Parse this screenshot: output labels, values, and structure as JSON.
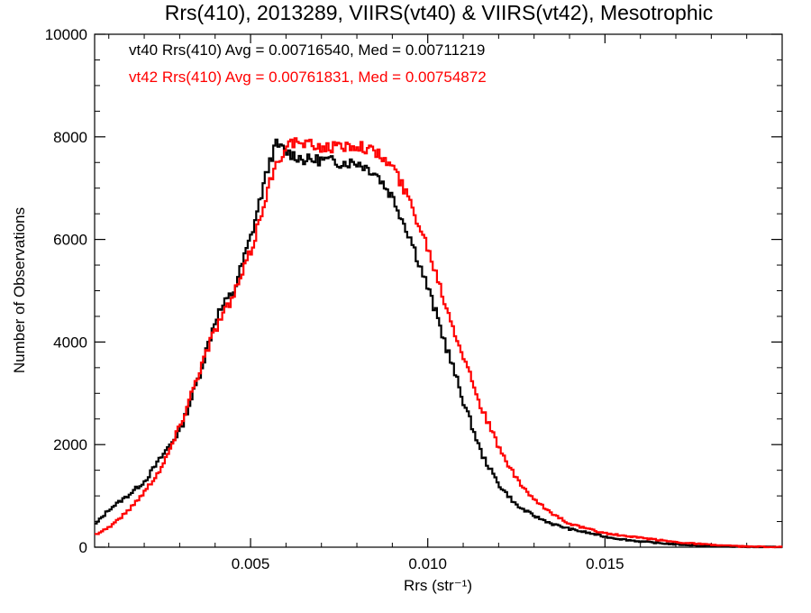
{
  "chart_data": {
    "type": "line",
    "title": "Rrs(410), 2013289, VIIRS(vt40) & VIIRS(vt42), Mesotrophic",
    "xlabel": "Rrs (str⁻¹)",
    "ylabel": "Number of Observations",
    "xlim": [
      0.0006,
      0.02
    ],
    "ylim": [
      0,
      10000
    ],
    "x_ticks": [
      {
        "value": 0.005,
        "label": "0.005"
      },
      {
        "value": 0.01,
        "label": "0.010"
      },
      {
        "value": 0.015,
        "label": "0.015"
      }
    ],
    "y_ticks": [
      {
        "value": 0,
        "label": "0"
      },
      {
        "value": 2000,
        "label": "2000"
      },
      {
        "value": 4000,
        "label": "4000"
      },
      {
        "value": 6000,
        "label": "6000"
      },
      {
        "value": 8000,
        "label": "8000"
      },
      {
        "value": 10000,
        "label": "10000"
      }
    ],
    "grid": false,
    "legend": "none",
    "annotations": [
      {
        "text": "vt40 Rrs(410) Avg = 0.00716540, Med = 0.00711219",
        "color": "#000000"
      },
      {
        "text": "vt42 Rrs(410) Avg = 0.00761831, Med = 0.00754872",
        "color": "#ff0000"
      }
    ],
    "series": [
      {
        "color": "#000000",
        "step": true,
        "points": [
          [
            0.0006,
            450
          ],
          [
            0.001,
            750
          ],
          [
            0.0015,
            1000
          ],
          [
            0.002,
            1300
          ],
          [
            0.0025,
            1800
          ],
          [
            0.003,
            2300
          ],
          [
            0.0035,
            3300
          ],
          [
            0.004,
            4500
          ],
          [
            0.0045,
            5000
          ],
          [
            0.005,
            6100
          ],
          [
            0.0055,
            7500
          ],
          [
            0.0057,
            7850
          ],
          [
            0.006,
            7700
          ],
          [
            0.0065,
            7550
          ],
          [
            0.007,
            7550
          ],
          [
            0.0075,
            7500
          ],
          [
            0.008,
            7500
          ],
          [
            0.0085,
            7300
          ],
          [
            0.009,
            6800
          ],
          [
            0.0095,
            6000
          ],
          [
            0.01,
            5000
          ],
          [
            0.0105,
            3900
          ],
          [
            0.011,
            2800
          ],
          [
            0.0115,
            1800
          ],
          [
            0.012,
            1200
          ],
          [
            0.0125,
            800
          ],
          [
            0.013,
            600
          ],
          [
            0.0135,
            450
          ],
          [
            0.014,
            350
          ],
          [
            0.0145,
            280
          ],
          [
            0.015,
            200
          ],
          [
            0.0155,
            150
          ],
          [
            0.016,
            110
          ],
          [
            0.0165,
            80
          ],
          [
            0.017,
            55
          ],
          [
            0.0175,
            35
          ],
          [
            0.018,
            22
          ],
          [
            0.0185,
            12
          ],
          [
            0.019,
            6
          ],
          [
            0.0195,
            3
          ],
          [
            0.02,
            1
          ]
        ]
      },
      {
        "color": "#ff0000",
        "step": true,
        "points": [
          [
            0.0006,
            250
          ],
          [
            0.001,
            400
          ],
          [
            0.0015,
            700
          ],
          [
            0.002,
            1100
          ],
          [
            0.0025,
            1600
          ],
          [
            0.003,
            2400
          ],
          [
            0.0035,
            3400
          ],
          [
            0.004,
            4300
          ],
          [
            0.0045,
            4900
          ],
          [
            0.005,
            5800
          ],
          [
            0.0055,
            7100
          ],
          [
            0.006,
            7900
          ],
          [
            0.0065,
            7850
          ],
          [
            0.007,
            7800
          ],
          [
            0.0075,
            7800
          ],
          [
            0.008,
            7850
          ],
          [
            0.0085,
            7700
          ],
          [
            0.009,
            7400
          ],
          [
            0.0095,
            6700
          ],
          [
            0.01,
            5800
          ],
          [
            0.0105,
            4700
          ],
          [
            0.011,
            3700
          ],
          [
            0.0115,
            2700
          ],
          [
            0.012,
            1900
          ],
          [
            0.0125,
            1300
          ],
          [
            0.013,
            900
          ],
          [
            0.0135,
            650
          ],
          [
            0.014,
            450
          ],
          [
            0.0145,
            350
          ],
          [
            0.015,
            270
          ],
          [
            0.0155,
            220
          ],
          [
            0.016,
            180
          ],
          [
            0.0165,
            140
          ],
          [
            0.017,
            100
          ],
          [
            0.0175,
            70
          ],
          [
            0.018,
            45
          ],
          [
            0.0185,
            25
          ],
          [
            0.019,
            12
          ],
          [
            0.0195,
            5
          ],
          [
            0.02,
            2
          ]
        ]
      }
    ]
  }
}
